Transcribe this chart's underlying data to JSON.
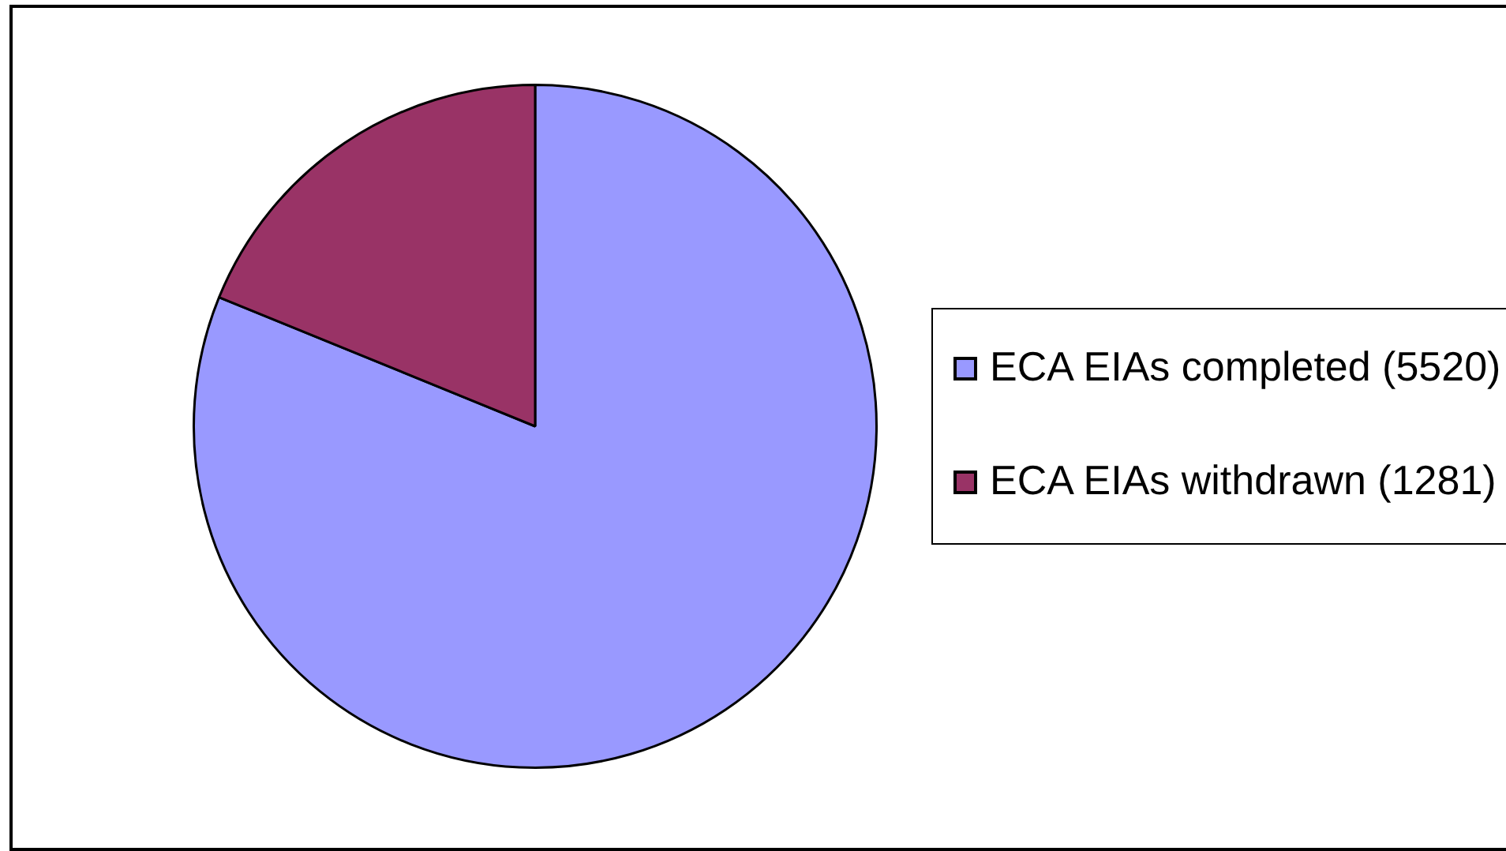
{
  "chart_data": {
    "type": "pie",
    "categories": [
      "ECA EIAs completed (5520)",
      "ECA EIAs withdrawn (1281)"
    ],
    "values": [
      5520,
      1281
    ],
    "colors": [
      "#9999ff",
      "#993366"
    ],
    "legend": "right"
  }
}
